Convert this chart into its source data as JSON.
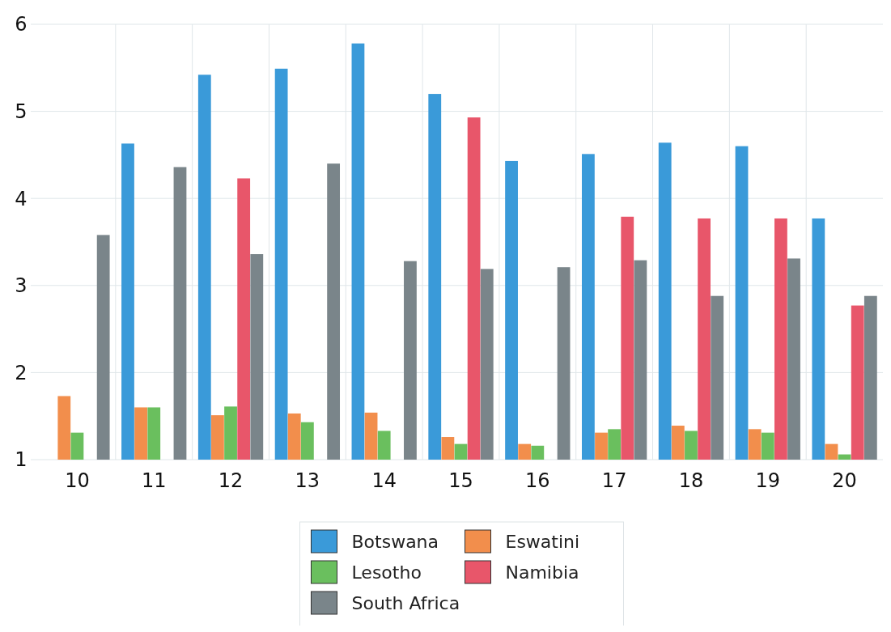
{
  "chart_data": {
    "type": "bar",
    "categories": [
      "10",
      "11",
      "12",
      "13",
      "14",
      "15",
      "16",
      "17",
      "18",
      "19",
      "20"
    ],
    "series": [
      {
        "name": "Botswana",
        "color": "#3a9ad9",
        "values": [
          null,
          4.63,
          5.42,
          5.49,
          5.78,
          5.2,
          4.43,
          4.51,
          4.64,
          4.6,
          3.77
        ]
      },
      {
        "name": "Eswatini",
        "color": "#f28e4c",
        "values": [
          1.73,
          1.6,
          1.51,
          1.53,
          1.54,
          1.26,
          1.18,
          1.31,
          1.39,
          1.35,
          1.18
        ]
      },
      {
        "name": "Lesotho",
        "color": "#6abf5e",
        "values": [
          1.31,
          1.6,
          1.61,
          1.43,
          1.33,
          1.18,
          1.16,
          1.35,
          1.33,
          1.31,
          1.06
        ]
      },
      {
        "name": "Namibia",
        "color": "#e8566a",
        "values": [
          null,
          null,
          4.23,
          null,
          null,
          4.93,
          null,
          3.79,
          3.77,
          3.77,
          2.77
        ]
      },
      {
        "name": "South Africa",
        "color": "#7a858a",
        "values": [
          3.58,
          4.36,
          3.36,
          4.4,
          3.28,
          3.19,
          3.21,
          3.29,
          2.88,
          3.31,
          2.88
        ]
      }
    ],
    "ylim": [
      1,
      6
    ],
    "yticks": [
      1,
      2,
      3,
      4,
      5,
      6
    ],
    "grid": true,
    "legend": "bottom"
  }
}
